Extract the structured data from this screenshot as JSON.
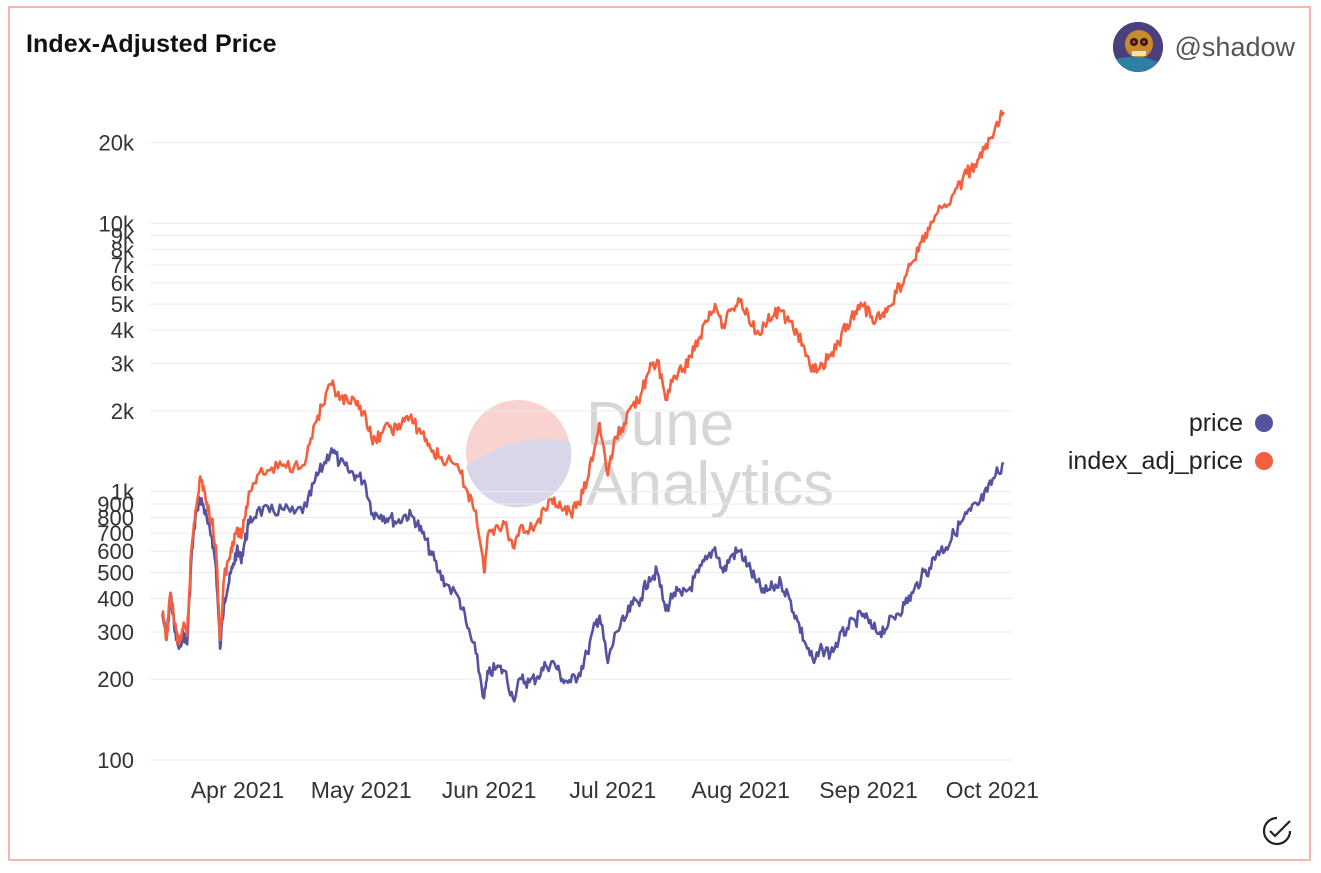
{
  "header": {
    "title": "Index-Adjusted Price",
    "user": "@shadow"
  },
  "watermark": {
    "line1": "Dune",
    "line2": "Analytics"
  },
  "legend": [
    {
      "label": "price",
      "color": "#5553a0"
    },
    {
      "label": "index_adj_price",
      "color": "#f4603e"
    }
  ],
  "chart_data": {
    "type": "line",
    "title": "Index-Adjusted Price",
    "xlabel": "",
    "ylabel": "",
    "yscale": "log",
    "ylim": [
      80,
      30000
    ],
    "xlim": [
      "2021-03-20",
      "2021-10-15"
    ],
    "grid": true,
    "legend_position": "right",
    "y_ticks": [
      {
        "value": 100,
        "label": "100"
      },
      {
        "value": 200,
        "label": "200"
      },
      {
        "value": 300,
        "label": "300"
      },
      {
        "value": 400,
        "label": "400"
      },
      {
        "value": 500,
        "label": "500"
      },
      {
        "value": 600,
        "label": "600"
      },
      {
        "value": 700,
        "label": "700"
      },
      {
        "value": 800,
        "label": "800"
      },
      {
        "value": 900,
        "label": "900"
      },
      {
        "value": 1000,
        "label": "1k"
      },
      {
        "value": 2000,
        "label": "2k"
      },
      {
        "value": 3000,
        "label": "3k"
      },
      {
        "value": 4000,
        "label": "4k"
      },
      {
        "value": 5000,
        "label": "5k"
      },
      {
        "value": 6000,
        "label": "6k"
      },
      {
        "value": 7000,
        "label": "7k"
      },
      {
        "value": 8000,
        "label": "8k"
      },
      {
        "value": 9000,
        "label": "9k"
      },
      {
        "value": 10000,
        "label": "10k"
      },
      {
        "value": 20000,
        "label": "20k"
      }
    ],
    "x_ticks": [
      {
        "date": "2021-04-01",
        "label": "Apr 2021"
      },
      {
        "date": "2021-05-01",
        "label": "May 2021"
      },
      {
        "date": "2021-06-01",
        "label": "Jun 2021"
      },
      {
        "date": "2021-07-01",
        "label": "Jul 2021"
      },
      {
        "date": "2021-08-01",
        "label": "Aug 2021"
      },
      {
        "date": "2021-09-01",
        "label": "Sep 2021"
      },
      {
        "date": "2021-10-01",
        "label": "Oct 2021"
      }
    ],
    "series": [
      {
        "name": "price",
        "color": "#5553a0",
        "points": [
          [
            "2021-03-23",
            350
          ],
          [
            "2021-03-24",
            280
          ],
          [
            "2021-03-25",
            420
          ],
          [
            "2021-03-26",
            300
          ],
          [
            "2021-03-27",
            260
          ],
          [
            "2021-03-28",
            300
          ],
          [
            "2021-03-29",
            270
          ],
          [
            "2021-03-30",
            550
          ],
          [
            "2021-03-31",
            800
          ],
          [
            "2021-04-01",
            950
          ],
          [
            "2021-04-02",
            880
          ],
          [
            "2021-04-03",
            760
          ],
          [
            "2021-04-04",
            680
          ],
          [
            "2021-04-05",
            520
          ],
          [
            "2021-04-06",
            260
          ],
          [
            "2021-04-07",
            400
          ],
          [
            "2021-04-08",
            450
          ],
          [
            "2021-04-09",
            520
          ],
          [
            "2021-04-10",
            600
          ],
          [
            "2021-04-11",
            560
          ],
          [
            "2021-04-12",
            650
          ],
          [
            "2021-04-13",
            760
          ],
          [
            "2021-04-15",
            850
          ],
          [
            "2021-04-18",
            840
          ],
          [
            "2021-04-21",
            860
          ],
          [
            "2021-04-24",
            830
          ],
          [
            "2021-04-27",
            880
          ],
          [
            "2021-04-29",
            1100
          ],
          [
            "2021-05-01",
            1250
          ],
          [
            "2021-05-03",
            1450
          ],
          [
            "2021-05-05",
            1280
          ],
          [
            "2021-05-07",
            1200
          ],
          [
            "2021-05-09",
            1150
          ],
          [
            "2021-05-11",
            1100
          ],
          [
            "2021-05-13",
            830
          ],
          [
            "2021-05-15",
            820
          ],
          [
            "2021-05-17",
            800
          ],
          [
            "2021-05-19",
            770
          ],
          [
            "2021-05-21",
            820
          ],
          [
            "2021-05-23",
            800
          ],
          [
            "2021-05-25",
            700
          ],
          [
            "2021-05-27",
            600
          ],
          [
            "2021-05-29",
            500
          ],
          [
            "2021-05-31",
            450
          ],
          [
            "2021-06-03",
            400
          ],
          [
            "2021-06-05",
            310
          ],
          [
            "2021-06-07",
            250
          ],
          [
            "2021-06-09",
            170
          ],
          [
            "2021-06-10",
            210
          ],
          [
            "2021-06-12",
            220
          ],
          [
            "2021-06-14",
            215
          ],
          [
            "2021-06-16",
            170
          ],
          [
            "2021-06-18",
            200
          ],
          [
            "2021-06-20",
            195
          ],
          [
            "2021-06-22",
            205
          ],
          [
            "2021-06-24",
            225
          ],
          [
            "2021-06-26",
            230
          ],
          [
            "2021-06-28",
            200
          ],
          [
            "2021-06-30",
            195
          ],
          [
            "2021-07-02",
            210
          ],
          [
            "2021-07-04",
            250
          ],
          [
            "2021-07-06",
            320
          ],
          [
            "2021-07-07",
            345
          ],
          [
            "2021-07-09",
            230
          ],
          [
            "2021-07-11",
            300
          ],
          [
            "2021-07-13",
            330
          ],
          [
            "2021-07-15",
            380
          ],
          [
            "2021-07-17",
            400
          ],
          [
            "2021-07-19",
            480
          ],
          [
            "2021-07-21",
            500
          ],
          [
            "2021-07-23",
            360
          ],
          [
            "2021-07-25",
            420
          ],
          [
            "2021-07-27",
            410
          ],
          [
            "2021-07-29",
            440
          ],
          [
            "2021-07-31",
            500
          ],
          [
            "2021-08-02",
            560
          ],
          [
            "2021-08-04",
            620
          ],
          [
            "2021-08-06",
            500
          ],
          [
            "2021-08-08",
            580
          ],
          [
            "2021-08-10",
            600
          ],
          [
            "2021-08-12",
            530
          ],
          [
            "2021-08-14",
            460
          ],
          [
            "2021-08-16",
            420
          ],
          [
            "2021-08-18",
            440
          ],
          [
            "2021-08-20",
            460
          ],
          [
            "2021-08-22",
            400
          ],
          [
            "2021-08-24",
            330
          ],
          [
            "2021-08-26",
            270
          ],
          [
            "2021-08-28",
            230
          ],
          [
            "2021-08-30",
            260
          ],
          [
            "2021-09-01",
            250
          ],
          [
            "2021-09-03",
            280
          ],
          [
            "2021-09-05",
            310
          ],
          [
            "2021-09-07",
            330
          ],
          [
            "2021-09-09",
            350
          ],
          [
            "2021-09-11",
            310
          ],
          [
            "2021-09-13",
            300
          ],
          [
            "2021-09-15",
            320
          ],
          [
            "2021-09-17",
            350
          ],
          [
            "2021-09-19",
            380
          ],
          [
            "2021-09-21",
            420
          ],
          [
            "2021-09-23",
            480
          ],
          [
            "2021-09-25",
            520
          ],
          [
            "2021-09-27",
            600
          ],
          [
            "2021-09-29",
            620
          ],
          [
            "2021-10-01",
            700
          ],
          [
            "2021-10-03",
            780
          ],
          [
            "2021-10-05",
            850
          ],
          [
            "2021-10-07",
            900
          ],
          [
            "2021-10-09",
            1000
          ],
          [
            "2021-10-11",
            1150
          ],
          [
            "2021-10-13",
            1280
          ]
        ]
      },
      {
        "name": "index_adj_price",
        "color": "#f4603e",
        "points": [
          [
            "2021-03-23",
            350
          ],
          [
            "2021-03-24",
            280
          ],
          [
            "2021-03-25",
            420
          ],
          [
            "2021-03-26",
            320
          ],
          [
            "2021-03-27",
            270
          ],
          [
            "2021-03-28",
            310
          ],
          [
            "2021-03-29",
            290
          ],
          [
            "2021-03-30",
            600
          ],
          [
            "2021-03-31",
            850
          ],
          [
            "2021-04-01",
            1100
          ],
          [
            "2021-04-02",
            1050
          ],
          [
            "2021-04-03",
            850
          ],
          [
            "2021-04-04",
            780
          ],
          [
            "2021-04-05",
            620
          ],
          [
            "2021-04-06",
            280
          ],
          [
            "2021-04-07",
            480
          ],
          [
            "2021-04-08",
            550
          ],
          [
            "2021-04-09",
            650
          ],
          [
            "2021-04-10",
            720
          ],
          [
            "2021-04-11",
            680
          ],
          [
            "2021-04-12",
            800
          ],
          [
            "2021-04-13",
            1000
          ],
          [
            "2021-04-15",
            1150
          ],
          [
            "2021-04-18",
            1200
          ],
          [
            "2021-04-21",
            1250
          ],
          [
            "2021-04-24",
            1250
          ],
          [
            "2021-04-27",
            1350
          ],
          [
            "2021-04-29",
            1800
          ],
          [
            "2021-05-01",
            2100
          ],
          [
            "2021-05-03",
            2500
          ],
          [
            "2021-05-05",
            2200
          ],
          [
            "2021-05-07",
            2150
          ],
          [
            "2021-05-09",
            2100
          ],
          [
            "2021-05-11",
            2000
          ],
          [
            "2021-05-13",
            1500
          ],
          [
            "2021-05-15",
            1650
          ],
          [
            "2021-05-17",
            1750
          ],
          [
            "2021-05-19",
            1700
          ],
          [
            "2021-05-21",
            1900
          ],
          [
            "2021-05-23",
            1800
          ],
          [
            "2021-05-25",
            1650
          ],
          [
            "2021-05-27",
            1450
          ],
          [
            "2021-05-29",
            1350
          ],
          [
            "2021-05-31",
            1300
          ],
          [
            "2021-06-03",
            1200
          ],
          [
            "2021-06-05",
            1000
          ],
          [
            "2021-06-07",
            850
          ],
          [
            "2021-06-09",
            500
          ],
          [
            "2021-06-10",
            700
          ],
          [
            "2021-06-12",
            750
          ],
          [
            "2021-06-14",
            760
          ],
          [
            "2021-06-16",
            620
          ],
          [
            "2021-06-18",
            750
          ],
          [
            "2021-06-20",
            720
          ],
          [
            "2021-06-22",
            780
          ],
          [
            "2021-06-24",
            850
          ],
          [
            "2021-06-26",
            950
          ],
          [
            "2021-06-28",
            850
          ],
          [
            "2021-06-30",
            830
          ],
          [
            "2021-07-02",
            900
          ],
          [
            "2021-07-04",
            1100
          ],
          [
            "2021-07-06",
            1500
          ],
          [
            "2021-07-07",
            1800
          ],
          [
            "2021-07-09",
            1150
          ],
          [
            "2021-07-11",
            1600
          ],
          [
            "2021-07-13",
            1800
          ],
          [
            "2021-07-15",
            2100
          ],
          [
            "2021-07-17",
            2300
          ],
          [
            "2021-07-19",
            2800
          ],
          [
            "2021-07-21",
            3100
          ],
          [
            "2021-07-23",
            2200
          ],
          [
            "2021-07-25",
            2700
          ],
          [
            "2021-07-27",
            2800
          ],
          [
            "2021-07-29",
            3200
          ],
          [
            "2021-07-31",
            3700
          ],
          [
            "2021-08-02",
            4300
          ],
          [
            "2021-08-04",
            5000
          ],
          [
            "2021-08-06",
            4200
          ],
          [
            "2021-08-08",
            4800
          ],
          [
            "2021-08-10",
            5100
          ],
          [
            "2021-08-12",
            4600
          ],
          [
            "2021-08-14",
            3900
          ],
          [
            "2021-08-16",
            4200
          ],
          [
            "2021-08-18",
            4500
          ],
          [
            "2021-08-20",
            4700
          ],
          [
            "2021-08-22",
            4300
          ],
          [
            "2021-08-24",
            3900
          ],
          [
            "2021-08-26",
            3200
          ],
          [
            "2021-08-28",
            2800
          ],
          [
            "2021-08-30",
            3000
          ],
          [
            "2021-09-01",
            3200
          ],
          [
            "2021-09-03",
            3600
          ],
          [
            "2021-09-05",
            4200
          ],
          [
            "2021-09-07",
            4700
          ],
          [
            "2021-09-09",
            4900
          ],
          [
            "2021-09-11",
            4500
          ],
          [
            "2021-09-13",
            4400
          ],
          [
            "2021-09-15",
            4900
          ],
          [
            "2021-09-17",
            5500
          ],
          [
            "2021-09-19",
            6300
          ],
          [
            "2021-09-21",
            7200
          ],
          [
            "2021-09-23",
            8500
          ],
          [
            "2021-09-25",
            9500
          ],
          [
            "2021-09-27",
            11000
          ],
          [
            "2021-09-29",
            11500
          ],
          [
            "2021-10-01",
            13000
          ],
          [
            "2021-10-03",
            14500
          ],
          [
            "2021-10-05",
            16000
          ],
          [
            "2021-10-07",
            17500
          ],
          [
            "2021-10-09",
            19000
          ],
          [
            "2021-10-11",
            23000
          ],
          [
            "2021-10-13",
            26000
          ]
        ]
      }
    ]
  }
}
